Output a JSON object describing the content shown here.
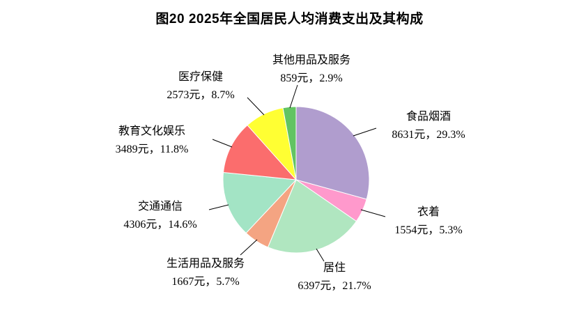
{
  "chart_data": {
    "type": "pie",
    "title": "图20  2025年全国居民人均消费支出及其构成",
    "unit": "元",
    "start_angle_deg": 0,
    "direction": "clockwise",
    "legend_position": "none",
    "slices": [
      {
        "name": "食品烟酒",
        "value": 8631,
        "pct": 29.3,
        "label_value": "8631元，29.3%",
        "color": "#b09dce"
      },
      {
        "name": "衣着",
        "value": 1554,
        "pct": 5.3,
        "label_value": "1554元，5.3%",
        "color": "#ff99cc"
      },
      {
        "name": "居住",
        "value": 6397,
        "pct": 21.7,
        "label_value": "6397元，21.7%",
        "color": "#b0e6c0"
      },
      {
        "name": "生活用品及服务",
        "value": 1667,
        "pct": 5.7,
        "label_value": "1667元，5.7%",
        "color": "#f4a482"
      },
      {
        "name": "交通通信",
        "value": 4306,
        "pct": 14.6,
        "label_value": "4306元，14.6%",
        "color": "#a3e4c5"
      },
      {
        "name": "教育文化娱乐",
        "value": 3489,
        "pct": 11.8,
        "label_value": "3489元，11.8%",
        "color": "#fb6d6d"
      },
      {
        "name": "医疗保健",
        "value": 2573,
        "pct": 8.7,
        "label_value": "2573元，8.7%",
        "color": "#ffff33"
      },
      {
        "name": "其他用品及服务",
        "value": 859,
        "pct": 2.9,
        "label_value": "859元，2.9%",
        "color": "#62c462"
      }
    ]
  }
}
